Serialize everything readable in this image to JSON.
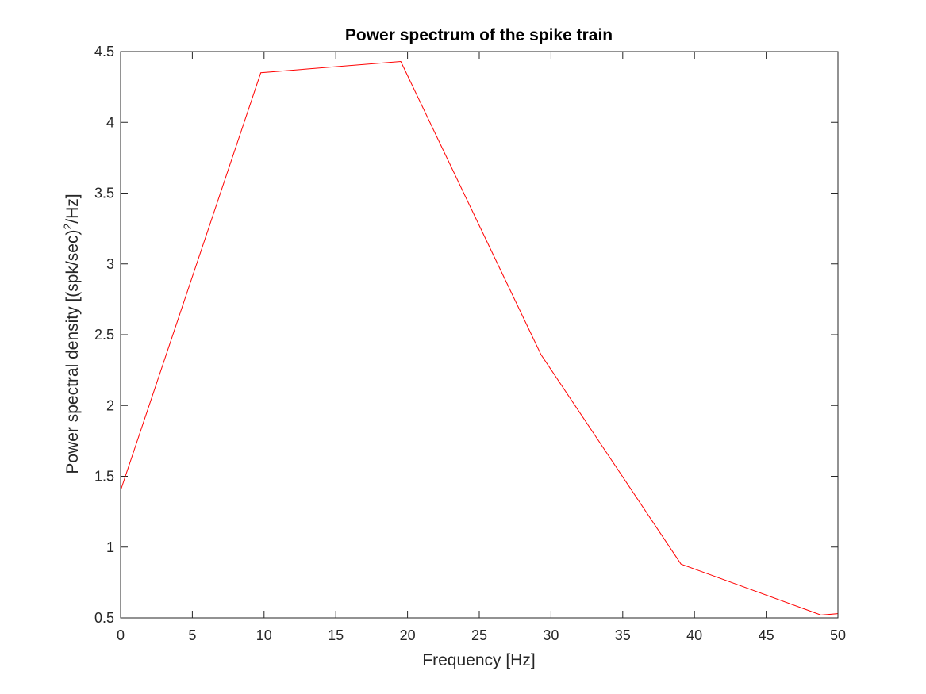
{
  "chart_data": {
    "type": "line",
    "title": "Power spectrum of the spike train",
    "xlabel": "Frequency [Hz]",
    "ylabel": {
      "prefix": "Power spectral density [(spk/sec)",
      "superscript": "2",
      "suffix": "/Hz]"
    },
    "xlim": [
      0,
      50
    ],
    "ylim": [
      0.5,
      4.5
    ],
    "xticks": [
      "0",
      "5",
      "10",
      "15",
      "20",
      "25",
      "30",
      "35",
      "40",
      "45",
      "50"
    ],
    "yticks": [
      "0.5",
      "1",
      "1.5",
      "2",
      "2.5",
      "3",
      "3.5",
      "4",
      "4.5"
    ],
    "grid": false,
    "box": true,
    "series": [
      {
        "color": "#ff0000",
        "x": [
          0,
          9.77,
          19.53,
          29.3,
          39.06,
          48.83,
          50
        ],
        "y": [
          1.4,
          4.35,
          4.43,
          2.36,
          0.88,
          0.52,
          0.53
        ]
      }
    ]
  }
}
